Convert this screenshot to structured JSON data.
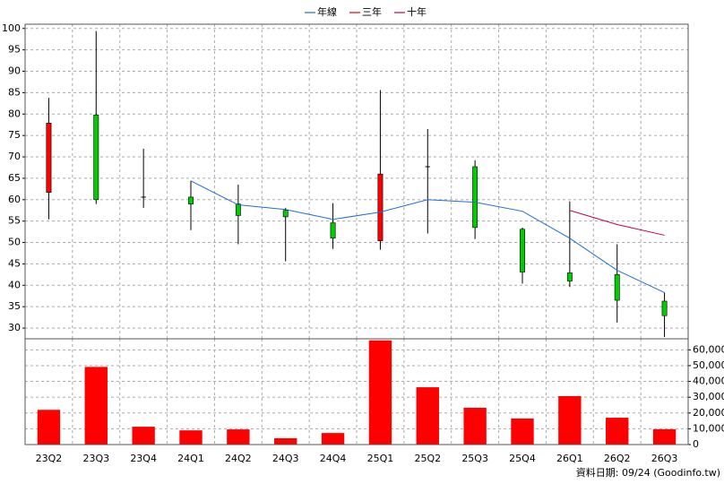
{
  "chart_data": [
    {
      "type": "candlestick",
      "categories": [
        "23Q2",
        "23Q3",
        "23Q4",
        "24Q1",
        "24Q2",
        "24Q3",
        "24Q4",
        "25Q1",
        "25Q2",
        "25Q3",
        "25Q4",
        "26Q1",
        "26Q2",
        "26Q3"
      ],
      "open": [
        61.7,
        79.8,
        60.6,
        60.6,
        59.0,
        57.5,
        54.6,
        50.4,
        67.7,
        67.7,
        53.1,
        42.9,
        42.5,
        36.3
      ],
      "high": [
        83.8,
        99.4,
        71.9,
        64.4,
        63.5,
        58.1,
        59.2,
        85.6,
        76.5,
        69.2,
        53.5,
        59.6,
        49.6,
        38.3
      ],
      "low": [
        55.4,
        59.0,
        58.1,
        52.9,
        49.6,
        45.6,
        48.5,
        48.3,
        52.1,
        50.8,
        40.4,
        39.6,
        31.3,
        27.9
      ],
      "close": [
        77.9,
        60.0,
        60.6,
        59.0,
        56.3,
        56.0,
        51.0,
        66.0,
        67.7,
        53.5,
        43.1,
        41.0,
        36.5,
        32.9
      ],
      "up_color": "#ff0000",
      "down_color": "#00cc00",
      "series": [
        {
          "name": "年線",
          "color": "#1f6fd0",
          "values": [
            null,
            null,
            null,
            64.4,
            58.8,
            57.7,
            55.4,
            57.1,
            60.0,
            59.4,
            57.3,
            51.0,
            43.5,
            38.3
          ]
        },
        {
          "name": "三年",
          "color": "#e00000",
          "values": [
            null,
            null,
            null,
            null,
            null,
            null,
            null,
            null,
            null,
            null,
            null,
            null,
            null,
            null
          ]
        },
        {
          "name": "十年",
          "color": "#c0005a",
          "values": [
            null,
            null,
            null,
            null,
            null,
            null,
            null,
            null,
            null,
            null,
            null,
            57.5,
            54.2,
            51.7
          ]
        }
      ],
      "ylim": [
        27.5,
        101
      ],
      "yticks": [
        30,
        35,
        40,
        45,
        50,
        55,
        60,
        65,
        70,
        75,
        80,
        85,
        90,
        95,
        100
      ],
      "grid": true,
      "legend": "top",
      "source": "資料日期: 09/24 (Goodinfo.tw)"
    },
    {
      "type": "bar",
      "values": [
        22000,
        49200,
        11300,
        9000,
        9600,
        4000,
        7300,
        66000,
        36300,
        23300,
        16500,
        30700,
        17000,
        9700
      ],
      "color": "#ff0000",
      "ylim": [
        0,
        67000
      ],
      "yticks": [
        0,
        {
          "value": 10000,
          "label": "10,000"
        },
        {
          "value": 20000,
          "label": "20,000"
        },
        {
          "value": 30000,
          "label": "30,000"
        },
        {
          "value": 40000,
          "label": "40,000"
        },
        {
          "value": 50000,
          "label": "50,000"
        },
        {
          "value": 60000,
          "label": "60,000"
        }
      ],
      "grid": true
    }
  ]
}
